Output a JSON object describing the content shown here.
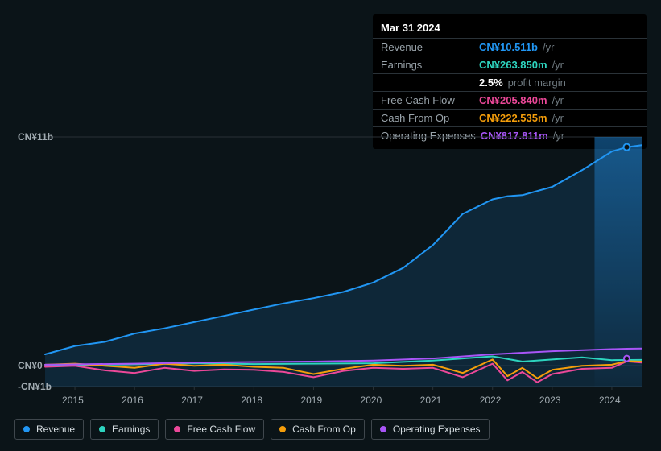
{
  "tooltip": {
    "date": "Mar 31 2024",
    "rows": [
      {
        "label": "Revenue",
        "value": "CN¥10.511b",
        "color": "#2196f3",
        "unit": "/yr"
      },
      {
        "label": "Earnings",
        "value": "CN¥263.850m",
        "color": "#2dd4bf",
        "unit": "/yr"
      },
      {
        "label": "",
        "value": "2.5%",
        "color": "#ffffff",
        "unit": "profit margin",
        "margin": true
      },
      {
        "label": "Free Cash Flow",
        "value": "CN¥205.840m",
        "color": "#ec4899",
        "unit": "/yr"
      },
      {
        "label": "Cash From Op",
        "value": "CN¥222.535m",
        "color": "#f59e0b",
        "unit": "/yr"
      },
      {
        "label": "Operating Expenses",
        "value": "CN¥817.811m",
        "color": "#a855f7",
        "unit": "/yr"
      }
    ]
  },
  "chart": {
    "type": "line",
    "background_color": "#0b1418",
    "plot_bg": "#0b1418",
    "grid_color": "#2a3136",
    "text_color": "#a1abb1",
    "label_fontsize": 12,
    "yaxis": {
      "min": -1,
      "max": 11,
      "unit": "b",
      "ticks": [
        {
          "v": 11,
          "label": "CN¥11b"
        },
        {
          "v": 0,
          "label": "CN¥0"
        },
        {
          "v": -1,
          "label": "-CN¥1b"
        }
      ]
    },
    "xaxis": {
      "min": 2014.5,
      "max": 2024.5,
      "ticks": [
        2015,
        2016,
        2017,
        2018,
        2019,
        2020,
        2021,
        2022,
        2023,
        2024
      ]
    },
    "cursor_x": 2024.25,
    "series": [
      {
        "name": "Revenue",
        "color": "#2196f3",
        "width": 2,
        "fill": true,
        "fill_opacity": 0.15,
        "data": [
          [
            2014.5,
            0.55
          ],
          [
            2015,
            0.95
          ],
          [
            2015.5,
            1.15
          ],
          [
            2016,
            1.55
          ],
          [
            2016.5,
            1.8
          ],
          [
            2017,
            2.1
          ],
          [
            2017.5,
            2.4
          ],
          [
            2018,
            2.7
          ],
          [
            2018.5,
            3.0
          ],
          [
            2019,
            3.25
          ],
          [
            2019.5,
            3.55
          ],
          [
            2020,
            4.0
          ],
          [
            2020.5,
            4.7
          ],
          [
            2021,
            5.8
          ],
          [
            2021.5,
            7.3
          ],
          [
            2022,
            8.0
          ],
          [
            2022.25,
            8.15
          ],
          [
            2022.5,
            8.2
          ],
          [
            2023,
            8.6
          ],
          [
            2023.5,
            9.4
          ],
          [
            2024,
            10.3
          ],
          [
            2024.25,
            10.51
          ],
          [
            2024.5,
            10.6
          ]
        ]
      },
      {
        "name": "Earnings",
        "color": "#2dd4bf",
        "width": 2,
        "data": [
          [
            2014.5,
            0.0
          ],
          [
            2016,
            0.07
          ],
          [
            2017,
            0.12
          ],
          [
            2018,
            0.08
          ],
          [
            2019,
            0.1
          ],
          [
            2020,
            0.12
          ],
          [
            2021,
            0.25
          ],
          [
            2022,
            0.45
          ],
          [
            2022.5,
            0.2
          ],
          [
            2023,
            0.3
          ],
          [
            2023.5,
            0.4
          ],
          [
            2024,
            0.27
          ],
          [
            2024.5,
            0.28
          ]
        ]
      },
      {
        "name": "Free Cash Flow",
        "color": "#ec4899",
        "width": 2,
        "data": [
          [
            2014.5,
            -0.05
          ],
          [
            2015,
            0.0
          ],
          [
            2015.5,
            -0.22
          ],
          [
            2016,
            -0.35
          ],
          [
            2016.5,
            -0.1
          ],
          [
            2017,
            -0.25
          ],
          [
            2017.5,
            -0.18
          ],
          [
            2018,
            -0.2
          ],
          [
            2018.5,
            -0.3
          ],
          [
            2019,
            -0.55
          ],
          [
            2019.5,
            -0.25
          ],
          [
            2020,
            -0.1
          ],
          [
            2020.5,
            -0.15
          ],
          [
            2021,
            -0.1
          ],
          [
            2021.5,
            -0.55
          ],
          [
            2022,
            0.1
          ],
          [
            2022.25,
            -0.7
          ],
          [
            2022.5,
            -0.3
          ],
          [
            2022.75,
            -0.8
          ],
          [
            2023,
            -0.4
          ],
          [
            2023.5,
            -0.15
          ],
          [
            2024,
            -0.1
          ],
          [
            2024.25,
            0.21
          ],
          [
            2024.5,
            0.15
          ]
        ]
      },
      {
        "name": "Cash From Op",
        "color": "#f59e0b",
        "width": 2,
        "data": [
          [
            2014.5,
            0.05
          ],
          [
            2015,
            0.1
          ],
          [
            2015.5,
            0.0
          ],
          [
            2016,
            -0.1
          ],
          [
            2016.5,
            0.1
          ],
          [
            2017,
            0.0
          ],
          [
            2017.5,
            0.05
          ],
          [
            2018,
            -0.05
          ],
          [
            2018.5,
            -0.1
          ],
          [
            2019,
            -0.4
          ],
          [
            2019.5,
            -0.15
          ],
          [
            2020,
            0.05
          ],
          [
            2020.5,
            0.0
          ],
          [
            2021,
            0.05
          ],
          [
            2021.5,
            -0.35
          ],
          [
            2022,
            0.3
          ],
          [
            2022.25,
            -0.5
          ],
          [
            2022.5,
            -0.1
          ],
          [
            2022.75,
            -0.6
          ],
          [
            2023,
            -0.2
          ],
          [
            2023.5,
            0.0
          ],
          [
            2024,
            0.05
          ],
          [
            2024.25,
            0.22
          ],
          [
            2024.5,
            0.2
          ]
        ]
      },
      {
        "name": "Operating Expenses",
        "color": "#a855f7",
        "width": 2,
        "data": [
          [
            2014.5,
            0.05
          ],
          [
            2016,
            0.1
          ],
          [
            2017,
            0.15
          ],
          [
            2018,
            0.18
          ],
          [
            2019,
            0.2
          ],
          [
            2020,
            0.25
          ],
          [
            2021,
            0.35
          ],
          [
            2022,
            0.55
          ],
          [
            2023,
            0.7
          ],
          [
            2024,
            0.8
          ],
          [
            2024.25,
            0.82
          ],
          [
            2024.5,
            0.83
          ]
        ]
      }
    ],
    "legend": [
      {
        "label": "Revenue",
        "color": "#2196f3"
      },
      {
        "label": "Earnings",
        "color": "#2dd4bf"
      },
      {
        "label": "Free Cash Flow",
        "color": "#ec4899"
      },
      {
        "label": "Cash From Op",
        "color": "#f59e0b"
      },
      {
        "label": "Operating Expenses",
        "color": "#a855f7"
      }
    ]
  }
}
